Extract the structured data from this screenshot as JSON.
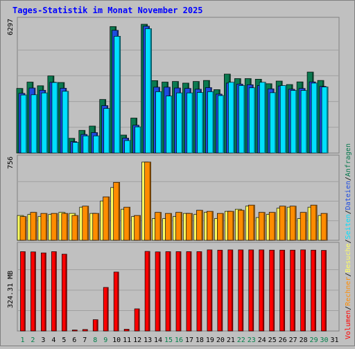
{
  "chart_data": {
    "type": "bar",
    "title": "Tages-Statistik im Monat November 2025",
    "categories": [
      "1",
      "2",
      "3",
      "4",
      "5",
      "6",
      "7",
      "8",
      "9",
      "10",
      "11",
      "12",
      "13",
      "14",
      "15",
      "16",
      "17",
      "18",
      "19",
      "20",
      "21",
      "22",
      "23",
      "24",
      "25",
      "26",
      "27",
      "28",
      "29",
      "30",
      "31"
    ],
    "weekend_days": [
      "1",
      "2",
      "8",
      "9",
      "15",
      "16",
      "22",
      "23",
      "29",
      "30"
    ],
    "top_panel": {
      "ymax_label": "6297",
      "ymax": 6297,
      "series": [
        {
          "name": "Anfragen",
          "color": "#0a7a50",
          "values": [
            3160,
            3470,
            3290,
            3770,
            3450,
            720,
            1110,
            1320,
            2620,
            6185,
            880,
            1710,
            6297,
            3540,
            3470,
            3500,
            3420,
            3500,
            3550,
            3100,
            3860,
            3640,
            3640,
            3610,
            3390,
            3520,
            3350,
            3480,
            3960,
            3550,
            null
          ]
        },
        {
          "name": "Dateien",
          "color": "#1e4de0",
          "values": [
            2920,
            3180,
            3070,
            3460,
            3170,
            560,
            910,
            1000,
            2320,
            6000,
            730,
            1360,
            6200,
            3220,
            3220,
            3180,
            3160,
            3120,
            3200,
            2880,
            3420,
            3370,
            3340,
            3300,
            3140,
            3280,
            3120,
            3160,
            3480,
            3260,
            null
          ]
        },
        {
          "name": "Seiten",
          "color": "#00e0ff",
          "values": [
            2840,
            2850,
            2940,
            3450,
            3020,
            520,
            840,
            840,
            2180,
            5710,
            610,
            1280,
            6080,
            3000,
            2790,
            2940,
            2940,
            2960,
            3000,
            2810,
            3460,
            3300,
            3190,
            3460,
            2950,
            3300,
            3060,
            3060,
            3420,
            3230,
            null
          ]
        }
      ]
    },
    "middle_panel": {
      "ymax_label": "756",
      "ymax": 756,
      "series": [
        {
          "name": "Besuche",
          "color": "#ffff60",
          "values": [
            240,
            250,
            230,
            250,
            270,
            260,
            320,
            260,
            380,
            510,
            300,
            230,
            756,
            210,
            210,
            230,
            260,
            250,
            270,
            210,
            280,
            300,
            330,
            220,
            250,
            310,
            320,
            210,
            320,
            240,
            null
          ]
        },
        {
          "name": "Rechner",
          "color": "#ff8c00",
          "values": [
            230,
            270,
            260,
            260,
            260,
            240,
            330,
            260,
            420,
            560,
            320,
            240,
            756,
            270,
            260,
            270,
            260,
            290,
            280,
            260,
            280,
            290,
            340,
            270,
            270,
            330,
            330,
            270,
            340,
            260,
            null
          ]
        }
      ]
    },
    "bottom_panel": {
      "ymax_label": "324.31 MB",
      "ymax": 324.31,
      "series": [
        {
          "name": "Volumen",
          "color": "#ff0000",
          "values": [
            315,
            314,
            310,
            315,
            305,
            4,
            6,
            45,
            173,
            234,
            7,
            88,
            316,
            314,
            315,
            315,
            315,
            315,
            322,
            321,
            322,
            322,
            322,
            322,
            321,
            321,
            321,
            322,
            321,
            320,
            null
          ]
        }
      ]
    },
    "legend_right": [
      {
        "label": "Volumen",
        "color": "#ff0000"
      },
      {
        "label": "/",
        "color": "#000000"
      },
      {
        "label": "Rechner",
        "color": "#ff8c00"
      },
      {
        "label": "/",
        "color": "#000000"
      },
      {
        "label": "Besuche",
        "color": "#ffff60"
      },
      {
        "label": "/",
        "color": "#000000"
      },
      {
        "label": "Seiten",
        "color": "#00e0ff"
      },
      {
        "label": "/",
        "color": "#000000"
      },
      {
        "label": "Dateien",
        "color": "#1e4de0"
      },
      {
        "label": "/",
        "color": "#000000"
      },
      {
        "label": "Anfragen",
        "color": "#0a7a50"
      }
    ],
    "colors": {
      "title": "#0000ff",
      "weekday_label": "#000000",
      "weekend_label": "#00804a",
      "background": "#c0c0c0",
      "grid": "#a0a0a0"
    }
  }
}
